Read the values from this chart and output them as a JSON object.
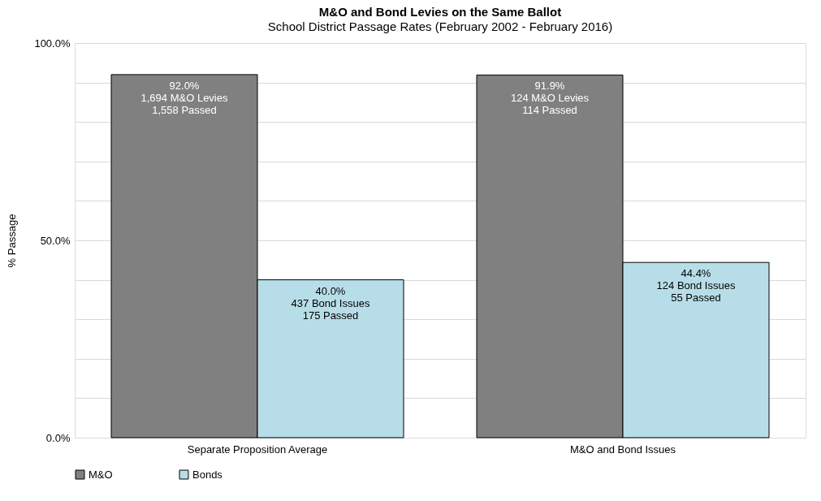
{
  "chart_data": {
    "type": "bar",
    "title": "M&O and Bond Levies on the Same Ballot",
    "subtitle": "School District Passage Rates (February 2002 - February 2016)",
    "ylabel": "% Passage",
    "categories": [
      "Separate Proposition Average",
      "M&O and Bond Issues"
    ],
    "series": [
      {
        "name": "M&O",
        "color": "#808080",
        "values": [
          92.0,
          91.9
        ],
        "value_labels": [
          "92.0%\n1,694 M&O Levies\n1,558 Passed",
          "91.9%\n124 M&O Levies\n114 Passed"
        ]
      },
      {
        "name": "Bonds",
        "color": "#b7dee8",
        "values": [
          40.0,
          44.4
        ],
        "value_labels": [
          "40.0%\n437 Bond Issues\n175 Passed",
          "44.4%\n124 Bond Issues\n55 Passed"
        ]
      }
    ],
    "ylim": [
      0,
      100
    ],
    "yticks": [
      {
        "value": 0,
        "label": "0.0%"
      },
      {
        "value": 10,
        "label": null
      },
      {
        "value": 20,
        "label": null
      },
      {
        "value": 30,
        "label": null
      },
      {
        "value": 40,
        "label": null
      },
      {
        "value": 50,
        "label": "50.0%"
      },
      {
        "value": 60,
        "label": null
      },
      {
        "value": 70,
        "label": null
      },
      {
        "value": 80,
        "label": null
      },
      {
        "value": 90,
        "label": null
      },
      {
        "value": 100,
        "label": "100.0%"
      }
    ],
    "grid": "y",
    "legend": "bottom"
  }
}
